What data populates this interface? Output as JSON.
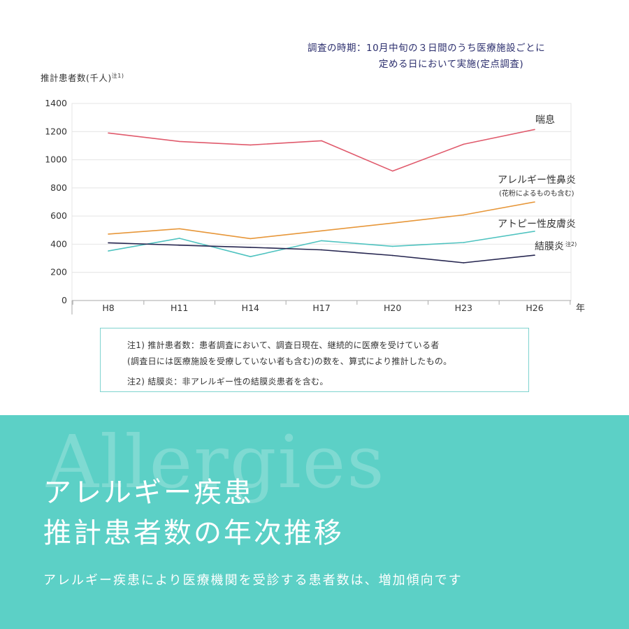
{
  "survey_note": {
    "line1": "調査の時期：10月中旬の３日間のうち医療施設ごとに",
    "line2": "定める日において実施(定点調査)"
  },
  "chart_data": {
    "type": "line",
    "ylabel": "推計患者数(千人)",
    "ylabel_note": "注1)",
    "xunit": "年",
    "categories": [
      "H8",
      "H11",
      "H14",
      "H17",
      "H20",
      "H23",
      "H26"
    ],
    "ylim": [
      0,
      1400
    ],
    "yticks": [
      0,
      200,
      400,
      600,
      800,
      1000,
      1200,
      1400
    ],
    "grid": true,
    "series": [
      {
        "name": "喘息",
        "sublabel": "",
        "note": "",
        "color": "#e05a6c",
        "values": [
          1190,
          1130,
          1105,
          1135,
          920,
          1110,
          1215
        ]
      },
      {
        "name": "アレルギー性鼻炎",
        "sublabel": "(花粉によるものも含む)",
        "note": "",
        "color": "#e7973a",
        "values": [
          472,
          510,
          440,
          495,
          550,
          608,
          700
        ]
      },
      {
        "name": "アトピー性皮膚炎",
        "sublabel": "",
        "note": "",
        "color": "#4fc3c0",
        "values": [
          352,
          442,
          312,
          425,
          385,
          412,
          492
        ]
      },
      {
        "name": "結膜炎",
        "sublabel": "",
        "note": "注2)",
        "color": "#262650",
        "values": [
          410,
          393,
          378,
          360,
          320,
          268,
          322
        ]
      }
    ]
  },
  "notes": {
    "note1_line1": "注1) 推計患者数：患者調査において、調査日現在、継続的に医療を受けている者",
    "note1_line2": "(調査日には医療施設を受療していない者も含む)の数を、算式により推計したもの。",
    "note2": "注2) 結膜炎：非アレルギー性の結膜炎患者を含む。"
  },
  "banner": {
    "bg_word": "Allergies",
    "headline_line1": "アレルギー疾患",
    "headline_line2": "推計患者数の年次推移",
    "subline": "アレルギー疾患により医療機関を受診する患者数は、増加傾向です"
  },
  "colors": {
    "band": "#5cd0c6",
    "grid": "#e4e4e4",
    "axis": "#aaaaaa"
  }
}
